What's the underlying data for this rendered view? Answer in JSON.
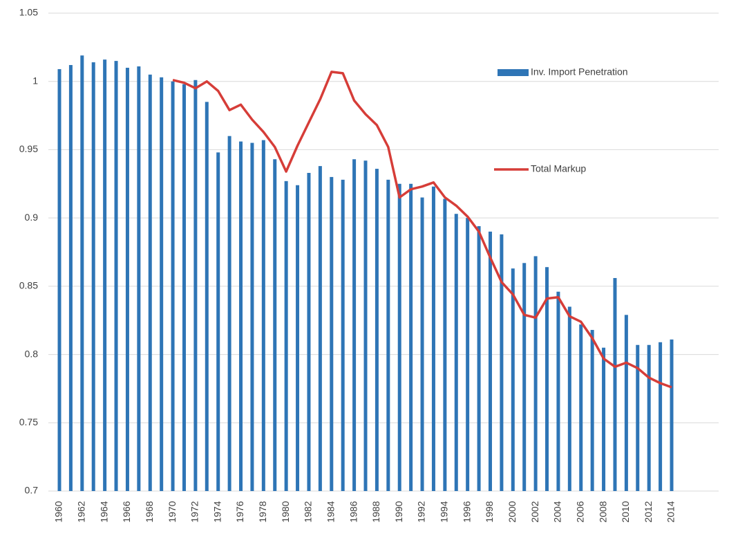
{
  "chart_data": {
    "type": "bar-line",
    "categories": [
      "1960",
      null,
      "1962",
      null,
      "1964",
      null,
      "1966",
      null,
      "1968",
      null,
      "1970",
      null,
      "1972",
      null,
      "1974",
      null,
      "1976",
      null,
      "1978",
      null,
      "1980",
      null,
      "1982",
      null,
      "1984",
      null,
      "1986",
      null,
      "1988",
      null,
      "1990",
      null,
      "1992",
      null,
      "1994",
      null,
      "1996",
      null,
      "1998",
      null,
      "2000",
      null,
      "2002",
      null,
      "2004",
      null,
      "2006",
      null,
      "2008",
      null,
      "2010",
      null,
      "2012",
      null,
      "2014"
    ],
    "series": [
      {
        "name": "Inv. Import Penetration",
        "type": "bar",
        "color": "#2e75b6",
        "values": [
          1.009,
          1.012,
          1.019,
          1.014,
          1.016,
          1.015,
          1.01,
          1.011,
          1.005,
          1.003,
          1.0,
          0.998,
          1.001,
          0.985,
          0.948,
          0.96,
          0.956,
          0.955,
          0.957,
          0.943,
          0.927,
          0.924,
          0.933,
          0.938,
          0.93,
          0.928,
          0.943,
          0.942,
          0.936,
          0.928,
          0.925,
          0.925,
          0.915,
          0.923,
          0.914,
          0.903,
          0.9,
          0.894,
          0.89,
          0.888,
          0.863,
          0.867,
          0.872,
          0.864,
          0.846,
          0.835,
          0.822,
          0.818,
          0.805,
          0.856,
          0.829,
          0.807,
          0.807,
          0.809,
          0.811
        ]
      },
      {
        "name": "Total Markup",
        "type": "line",
        "color": "#d63d38",
        "values": [
          null,
          null,
          null,
          null,
          null,
          null,
          null,
          null,
          null,
          null,
          1.001,
          0.999,
          0.995,
          1.0,
          0.993,
          0.979,
          0.983,
          0.972,
          0.963,
          0.952,
          0.934,
          0.953,
          0.97,
          0.987,
          1.007,
          1.006,
          0.986,
          0.976,
          0.968,
          0.952,
          0.915,
          0.921,
          0.923,
          0.926,
          0.915,
          0.909,
          0.901,
          0.89,
          0.871,
          0.853,
          0.844,
          0.829,
          0.827,
          0.841,
          0.842,
          0.828,
          0.824,
          0.812,
          0.797,
          0.791,
          0.794,
          0.79,
          0.783,
          0.779,
          0.776
        ]
      }
    ],
    "ylim": [
      0.7,
      1.05
    ],
    "yticks": [
      0.7,
      0.75,
      0.8,
      0.85,
      0.9,
      0.95,
      1,
      1.05
    ],
    "grid": true
  }
}
